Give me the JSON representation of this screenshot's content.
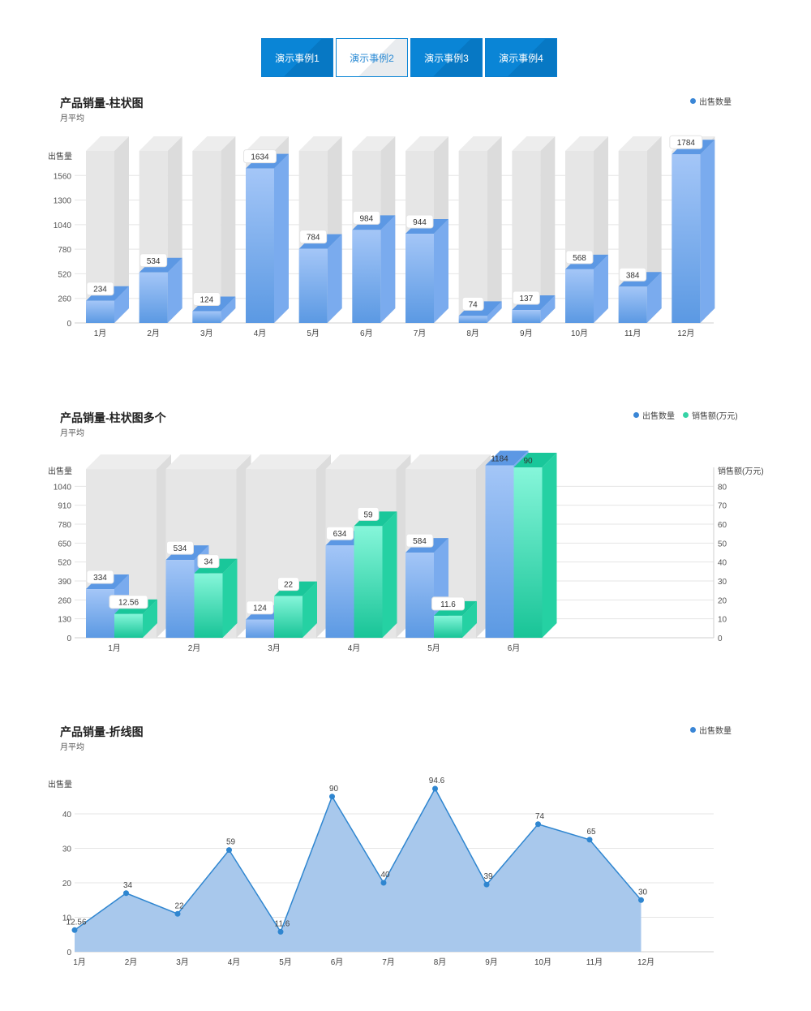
{
  "tabs": [
    {
      "label": "演示事例1",
      "active": false
    },
    {
      "label": "演示事例2",
      "active": true
    },
    {
      "label": "演示事例3",
      "active": false
    },
    {
      "label": "演示事例4",
      "active": false
    }
  ],
  "colors": {
    "blue": "#6aa3ea",
    "green": "#3ad9ac",
    "line": "#2f86d0",
    "area": "#a8c8ec",
    "bg_bar": "#e6e6e6"
  },
  "chart_data": [
    {
      "type": "bar",
      "title": "产品销量-柱状图",
      "subtitle": "月平均",
      "ylabel": "出售量",
      "legend": [
        "出售数量"
      ],
      "categories": [
        "1月",
        "2月",
        "3月",
        "4月",
        "5月",
        "6月",
        "7月",
        "8月",
        "9月",
        "10月",
        "11月",
        "12月"
      ],
      "series": [
        {
          "name": "出售数量",
          "values": [
            234,
            534,
            124,
            1634,
            784,
            984,
            944,
            74,
            137,
            568,
            384,
            1784
          ]
        }
      ],
      "ylim": [
        0,
        1820
      ],
      "yticks": [
        0,
        260,
        520,
        780,
        1040,
        1300,
        1560
      ],
      "grid": true
    },
    {
      "type": "bar",
      "title": "产品销量-柱状图多个",
      "subtitle": "月平均",
      "ylabel": "出售量",
      "y2label": "销售额(万元)",
      "legend": [
        "出售数量",
        "销售额(万元)"
      ],
      "categories": [
        "1月",
        "2月",
        "3月",
        "4月",
        "5月",
        "6月"
      ],
      "series": [
        {
          "name": "出售数量",
          "values": [
            334,
            534,
            124,
            634,
            584,
            1184
          ],
          "axis": "left"
        },
        {
          "name": "销售额(万元)",
          "values": [
            12.56,
            34,
            22,
            59,
            11.6,
            90
          ],
          "axis": "right"
        }
      ],
      "ylim": [
        0,
        1170
      ],
      "yticks": [
        0,
        130,
        260,
        390,
        520,
        650,
        780,
        910,
        1040
      ],
      "y2lim": [
        0,
        90
      ],
      "y2ticks": [
        0,
        10,
        20,
        30,
        40,
        50,
        60,
        70,
        80
      ],
      "grid": true
    },
    {
      "type": "area",
      "title": "产品销量-折线图",
      "subtitle": "月平均",
      "ylabel": "出售量",
      "legend": [
        "出售数量"
      ],
      "categories": [
        "1月",
        "2月",
        "3月",
        "4月",
        "5月",
        "6月",
        "7月",
        "8月",
        "9月",
        "10月",
        "11月",
        "12月"
      ],
      "series": [
        {
          "name": "出售数量",
          "values": [
            12.56,
            34,
            22,
            59,
            11.6,
            90,
            40,
            94.6,
            39,
            74,
            65,
            30
          ]
        }
      ],
      "yticks": [
        0,
        10,
        20,
        30,
        40
      ],
      "grid": true
    }
  ]
}
